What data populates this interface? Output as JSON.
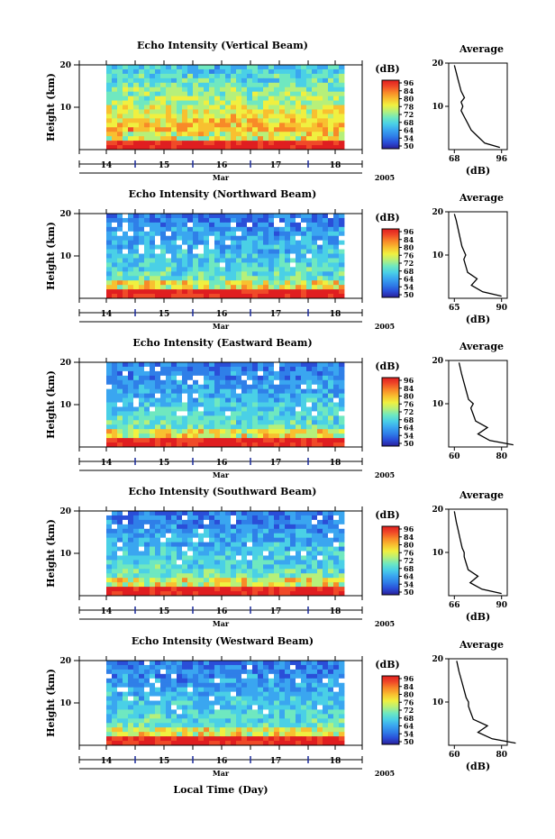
{
  "colors": {
    "scale": [
      "#2a1f9a",
      "#2a4ed8",
      "#2f7fe8",
      "#3aa6f0",
      "#4ad0e6",
      "#6fe8c0",
      "#b6f07a",
      "#f0f040",
      "#f8c030",
      "#f88a28",
      "#f04a28",
      "#e01e20"
    ],
    "axis": "#000000",
    "date_marker": "#1a2a9a"
  },
  "chart_data": [
    {
      "type": "heatmap",
      "title": "Echo Intensity (Vertical Beam)",
      "ylabel": "Height (km)",
      "yticks": [
        "20",
        "10"
      ],
      "ylim": [
        0,
        20
      ],
      "xticks": [
        "14",
        "15",
        "16",
        "17",
        "18"
      ],
      "xlabel_month": "Mar",
      "year": "2005",
      "colorbar_label": "(dB)",
      "colorbar_ticks": [
        "96",
        "84",
        "80",
        "78",
        "72",
        "68",
        "64",
        "54",
        "50"
      ],
      "avg_title": "Average",
      "avg_yticks": [
        "20",
        "10"
      ],
      "avg_xticks": [
        "68",
        "96"
      ],
      "avg_xlabel": "(dB)",
      "average_profile": [
        [
          95,
          0.5
        ],
        [
          86,
          1.5
        ],
        [
          82,
          3
        ],
        [
          78,
          4.5
        ],
        [
          76,
          6
        ],
        [
          74,
          7.5
        ],
        [
          72,
          9
        ],
        [
          73,
          10
        ],
        [
          72,
          11
        ],
        [
          74,
          12
        ],
        [
          72,
          13.5
        ],
        [
          71,
          15
        ],
        [
          70,
          16.5
        ],
        [
          69,
          18
        ],
        [
          68,
          19.5
        ]
      ]
    },
    {
      "type": "heatmap",
      "title": "Echo Intensity (Northward Beam)",
      "ylabel": "Height (km)",
      "yticks": [
        "20",
        "10"
      ],
      "ylim": [
        0,
        20
      ],
      "xticks": [
        "14",
        "15",
        "16",
        "17",
        "18"
      ],
      "xlabel_month": "Mar",
      "year": "2005",
      "colorbar_label": "(dB)",
      "colorbar_ticks": [
        "96",
        "84",
        "80",
        "76",
        "72",
        "68",
        "64",
        "54",
        "50"
      ],
      "avg_title": "Average",
      "avg_yticks": [
        "20",
        "10"
      ],
      "avg_xticks": [
        "65",
        "90"
      ],
      "avg_xlabel": "(dB)",
      "average_profile": [
        [
          90,
          0.5
        ],
        [
          80,
          1.5
        ],
        [
          74,
          3
        ],
        [
          77,
          4.5
        ],
        [
          72,
          6
        ],
        [
          71,
          7.5
        ],
        [
          70,
          9
        ],
        [
          71,
          10
        ],
        [
          70,
          11
        ],
        [
          69,
          12
        ],
        [
          68,
          14
        ],
        [
          67,
          16
        ],
        [
          66,
          18
        ],
        [
          65,
          19.5
        ]
      ]
    },
    {
      "type": "heatmap",
      "title": "Echo Intensity (Eastward Beam)",
      "ylabel": "Height (km)",
      "yticks": [
        "20",
        "10"
      ],
      "ylim": [
        0,
        20
      ],
      "xticks": [
        "14",
        "15",
        "16",
        "17",
        "18"
      ],
      "xlabel_month": "Mar",
      "year": "2005",
      "colorbar_label": "(dB)",
      "colorbar_ticks": [
        "96",
        "84",
        "80",
        "76",
        "72",
        "68",
        "64",
        "54",
        "50"
      ],
      "avg_title": "Average",
      "avg_yticks": [
        "20",
        "10"
      ],
      "avg_xticks": [
        "60",
        "80"
      ],
      "avg_xlabel": "",
      "average_profile": [
        [
          85,
          0.5
        ],
        [
          75,
          1.5
        ],
        [
          70,
          3
        ],
        [
          74,
          4.5
        ],
        [
          69,
          6
        ],
        [
          68,
          7.5
        ],
        [
          67,
          9
        ],
        [
          68,
          10
        ],
        [
          66,
          11
        ],
        [
          65,
          13
        ],
        [
          64,
          15
        ],
        [
          63,
          17
        ],
        [
          62,
          19.5
        ]
      ]
    },
    {
      "type": "heatmap",
      "title": "Echo Intensity (Southward Beam)",
      "ylabel": "Height (km)",
      "yticks": [
        "20",
        "10"
      ],
      "ylim": [
        0,
        20
      ],
      "xticks": [
        "14",
        "15",
        "16",
        "17",
        "18"
      ],
      "xlabel_month": "Mar",
      "year": "2005",
      "colorbar_label": "(dB)",
      "colorbar_ticks": [
        "96",
        "84",
        "80",
        "76",
        "72",
        "68",
        "64",
        "54",
        "50"
      ],
      "avg_title": "Average",
      "avg_yticks": [
        "20",
        "10"
      ],
      "avg_xticks": [
        "66",
        "90"
      ],
      "avg_xlabel": "(dB)",
      "average_profile": [
        [
          90,
          0.5
        ],
        [
          80,
          1.5
        ],
        [
          74,
          3
        ],
        [
          78,
          4.5
        ],
        [
          73,
          6
        ],
        [
          72,
          7.5
        ],
        [
          71,
          9
        ],
        [
          71,
          10
        ],
        [
          70,
          11
        ],
        [
          69,
          13
        ],
        [
          68,
          15
        ],
        [
          67,
          17
        ],
        [
          66,
          19.5
        ]
      ]
    },
    {
      "type": "heatmap",
      "title": "Echo Intensity (Westward Beam)",
      "ylabel": "Height (km)",
      "yticks": [
        "20",
        "10"
      ],
      "ylim": [
        0,
        20
      ],
      "xticks": [
        "14",
        "15",
        "16",
        "17",
        "18"
      ],
      "xlabel_month": "Mar",
      "year": "2005",
      "colorbar_label": "(dB)",
      "colorbar_ticks": [
        "96",
        "84",
        "80",
        "76",
        "72",
        "68",
        "64",
        "54",
        "50"
      ],
      "avg_title": "Average",
      "avg_yticks": [
        "20",
        "10"
      ],
      "avg_xticks": [
        "60",
        "80"
      ],
      "avg_xlabel": "(dB)",
      "average_profile": [
        [
          86,
          0.5
        ],
        [
          76,
          1.5
        ],
        [
          70,
          3
        ],
        [
          74,
          4.5
        ],
        [
          68,
          6
        ],
        [
          67,
          7.5
        ],
        [
          66,
          9
        ],
        [
          66,
          10
        ],
        [
          65,
          11
        ],
        [
          64,
          13
        ],
        [
          63,
          15
        ],
        [
          62,
          17
        ],
        [
          61,
          19.5
        ]
      ]
    }
  ],
  "footer": {
    "xlabel": "Local Time (Day)"
  }
}
